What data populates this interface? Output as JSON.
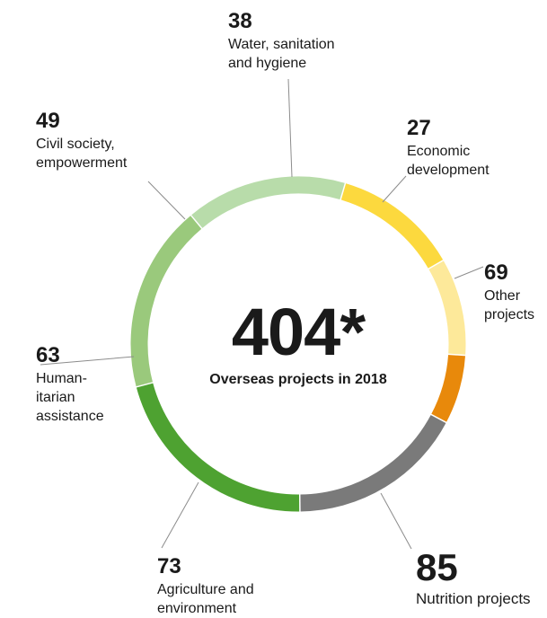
{
  "chart_data": {
    "type": "pie",
    "donut": true,
    "total": {
      "value": "404*",
      "label": "Overseas projects in 2018"
    },
    "slices": [
      {
        "value": 38,
        "label": "Water, sanitation and hygiene",
        "color": "#fde99a"
      },
      {
        "value": 27,
        "label": "Economic development",
        "color": "#e8890b"
      },
      {
        "value": 69,
        "label": "Other projects",
        "color": "#7a7a7a"
      },
      {
        "value": 85,
        "label": "Nutrition projects",
        "color": "#4ea231"
      },
      {
        "value": 73,
        "label": "Agriculture and environment",
        "color": "#9ac97c"
      },
      {
        "value": 63,
        "label": "Human-itarian assistance",
        "color": "#b8dcaa"
      },
      {
        "value": 49,
        "label": "Civil society, empowerment",
        "color": "#fcd93e"
      }
    ]
  }
}
